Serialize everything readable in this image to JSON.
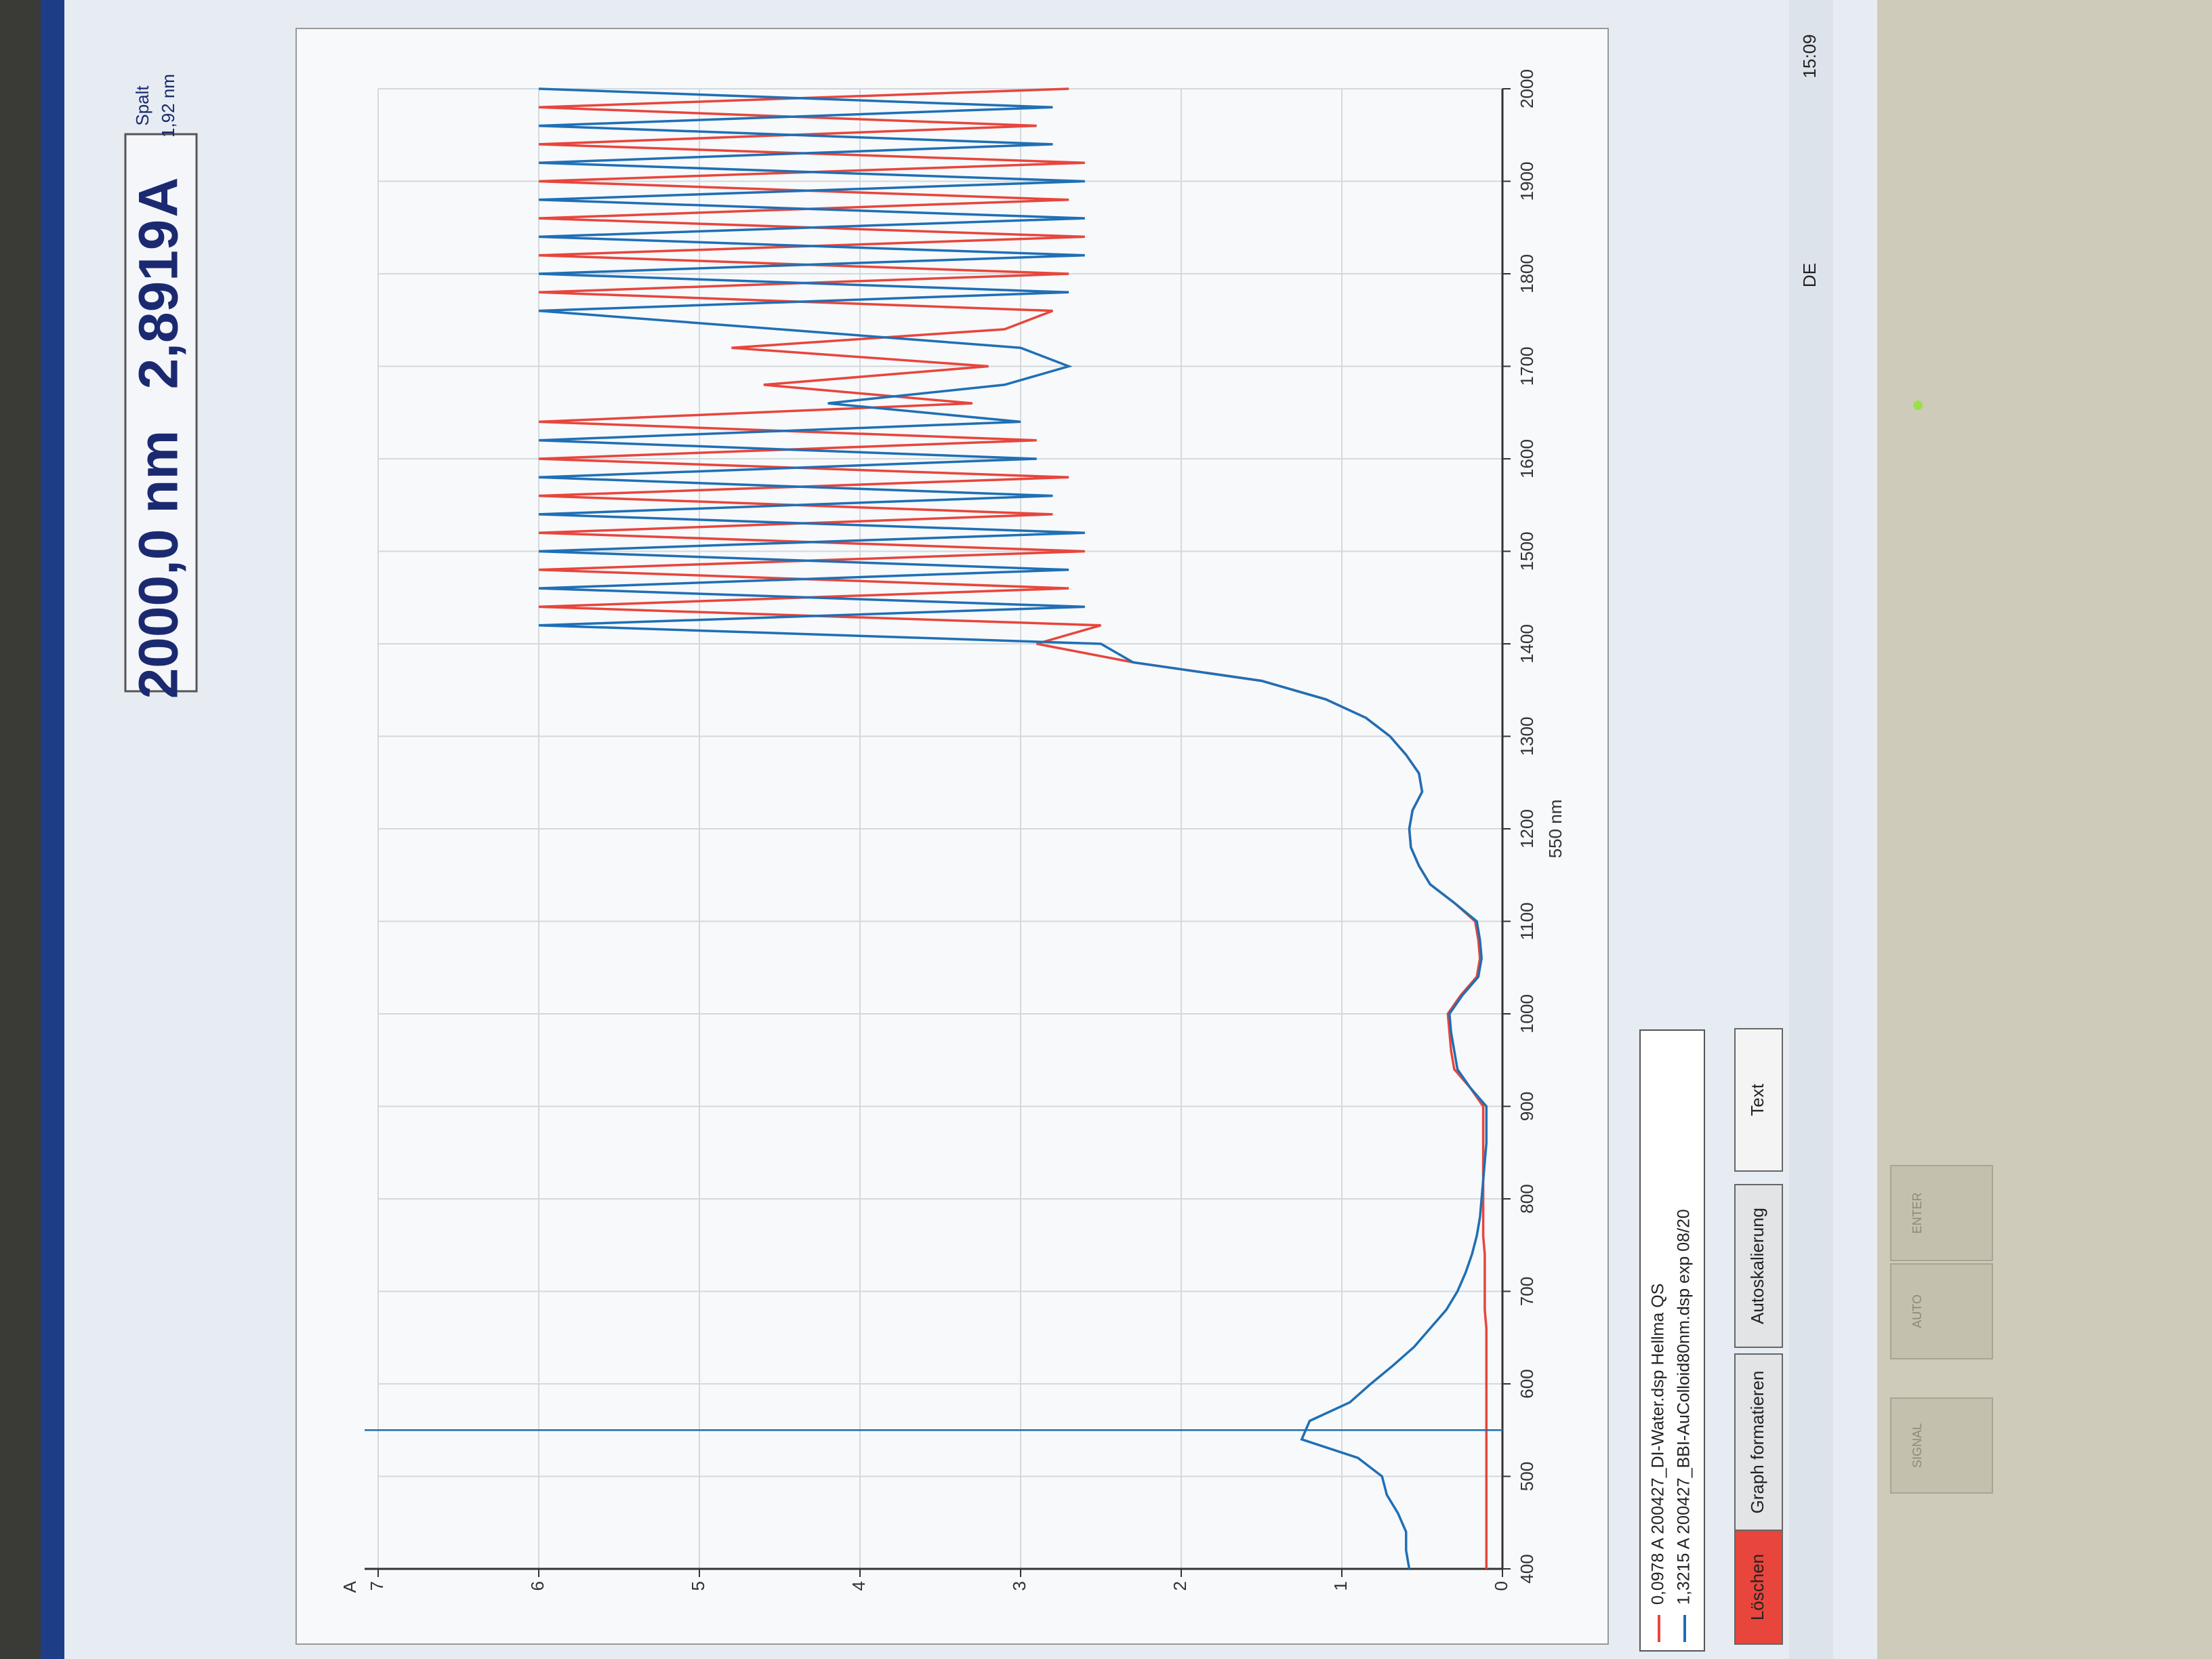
{
  "header": {
    "wavelength": "2000,0 nm",
    "absorbance": "2,8919",
    "unit": "A",
    "slit_label": "Spalt",
    "slit_value": "1,92 nm"
  },
  "chart_data": {
    "type": "line",
    "y_label": "A",
    "cursor_label": "550 nm",
    "cursor_x": 550,
    "x": [
      400,
      420,
      440,
      460,
      480,
      500,
      520,
      540,
      560,
      580,
      600,
      620,
      640,
      660,
      680,
      700,
      720,
      740,
      760,
      780,
      800,
      820,
      840,
      860,
      880,
      900,
      920,
      940,
      960,
      980,
      1000,
      1020,
      1040,
      1060,
      1080,
      1100,
      1120,
      1140,
      1160,
      1180,
      1200,
      1220,
      1240,
      1260,
      1280,
      1300,
      1320,
      1340,
      1360,
      1380,
      1400,
      1420,
      1440,
      1460,
      1480,
      1500,
      1520,
      1540,
      1560,
      1580,
      1600,
      1620,
      1640,
      1660,
      1680,
      1700,
      1720,
      1740,
      1760,
      1780,
      1800,
      1820,
      1840,
      1860,
      1880,
      1900,
      1920,
      1940,
      1960,
      1980,
      2000
    ],
    "series": [
      {
        "name": "0,0978 A  200427_DI-Water.dsp  Hellma QS",
        "color": "#e8453c",
        "values": [
          0.1,
          0.1,
          0.1,
          0.1,
          0.1,
          0.1,
          0.1,
          0.1,
          0.1,
          0.1,
          0.1,
          0.1,
          0.1,
          0.1,
          0.11,
          0.11,
          0.11,
          0.11,
          0.12,
          0.12,
          0.12,
          0.12,
          0.12,
          0.12,
          0.12,
          0.12,
          0.2,
          0.3,
          0.32,
          0.33,
          0.34,
          0.26,
          0.16,
          0.14,
          0.15,
          0.17,
          0.3,
          0.45,
          0.52,
          0.57,
          0.58,
          0.56,
          0.5,
          0.52,
          0.6,
          0.7,
          0.85,
          1.1,
          1.5,
          2.3,
          2.9,
          2.5,
          6.0,
          2.7,
          6.0,
          2.6,
          6.0,
          2.8,
          6.0,
          2.7,
          6.0,
          2.9,
          6.0,
          3.3,
          4.6,
          3.2,
          4.8,
          3.1,
          2.8,
          6.0,
          2.7,
          6.0,
          2.6,
          6.0,
          2.7,
          6.0,
          2.6,
          6.0,
          2.9,
          6.0,
          2.7
        ]
      },
      {
        "name": "1,3215 A  200427_BBI-AuColloid80nm.dsp  exp 08/20",
        "color": "#1f6fb5",
        "values": [
          0.58,
          0.6,
          0.6,
          0.65,
          0.72,
          0.75,
          0.9,
          1.25,
          1.2,
          0.95,
          0.82,
          0.68,
          0.55,
          0.45,
          0.35,
          0.28,
          0.23,
          0.19,
          0.16,
          0.14,
          0.13,
          0.12,
          0.11,
          0.1,
          0.1,
          0.1,
          0.2,
          0.28,
          0.3,
          0.32,
          0.33,
          0.25,
          0.15,
          0.13,
          0.14,
          0.16,
          0.3,
          0.45,
          0.52,
          0.57,
          0.58,
          0.56,
          0.5,
          0.52,
          0.6,
          0.7,
          0.85,
          1.1,
          1.5,
          2.3,
          2.5,
          6.0,
          2.6,
          6.0,
          2.7,
          6.0,
          2.6,
          6.0,
          2.8,
          6.0,
          2.9,
          6.0,
          3.0,
          4.2,
          3.1,
          2.7,
          3.0,
          4.5,
          6.0,
          2.7,
          6.0,
          2.6,
          6.0,
          2.6,
          6.0,
          2.6,
          6.0,
          2.8,
          6.0,
          2.8,
          6.0
        ]
      }
    ],
    "xlim": [
      400,
      2000
    ],
    "ylim": [
      0,
      7
    ],
    "xticks": [
      400,
      500,
      600,
      700,
      800,
      900,
      1000,
      1100,
      1200,
      1300,
      1400,
      1500,
      1600,
      1700,
      1800,
      1900,
      2000
    ],
    "yticks": [
      0,
      1,
      2,
      3,
      4,
      5,
      6,
      7
    ],
    "grid": true
  },
  "buttons": [
    "Löschen",
    "Graph formatieren",
    "Autoskalierung",
    "Text"
  ],
  "taskbar": {
    "language": "DE",
    "clock": "15:09"
  },
  "monitor_buttons": [
    "SIGNAL",
    "AUTO",
    "ENTER"
  ]
}
